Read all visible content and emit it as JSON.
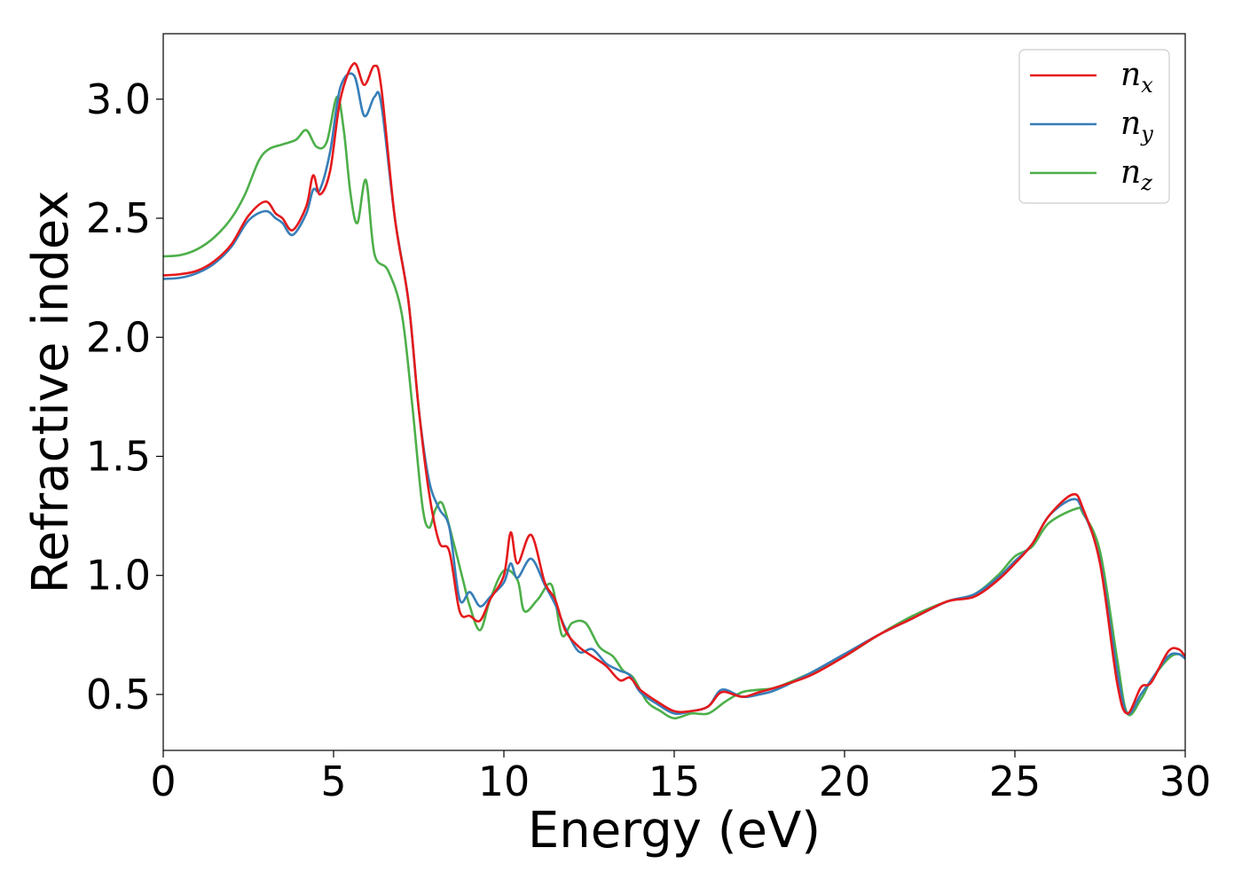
{
  "chart_data": {
    "type": "line",
    "title": "",
    "xlabel": "Energy (eV)",
    "ylabel": "Refractive index",
    "xlim": [
      0,
      30
    ],
    "ylim": [
      0.265,
      3.275
    ],
    "xticks": [
      "0",
      "5",
      "10",
      "15",
      "20",
      "25",
      "30"
    ],
    "yticks": [
      "0.5",
      "1.0",
      "1.5",
      "2.0",
      "2.5",
      "3.0"
    ],
    "grid": false,
    "legend_position": "top-right",
    "series": [
      {
        "name": "n_x",
        "label_base": "n",
        "label_sub": "x",
        "color": "#e41a1c",
        "points": [
          [
            0,
            2.26
          ],
          [
            0.5,
            2.265
          ],
          [
            1,
            2.28
          ],
          [
            1.5,
            2.32
          ],
          [
            2,
            2.39
          ],
          [
            2.5,
            2.51
          ],
          [
            3,
            2.57
          ],
          [
            3.3,
            2.52
          ],
          [
            3.5,
            2.5
          ],
          [
            3.8,
            2.45
          ],
          [
            4.2,
            2.55
          ],
          [
            4.4,
            2.68
          ],
          [
            4.6,
            2.6
          ],
          [
            4.9,
            2.7
          ],
          [
            5.2,
            3.0
          ],
          [
            5.6,
            3.15
          ],
          [
            5.9,
            3.06
          ],
          [
            6.2,
            3.14
          ],
          [
            6.4,
            3.05
          ],
          [
            6.8,
            2.5
          ],
          [
            7.2,
            2.15
          ],
          [
            7.5,
            1.7
          ],
          [
            7.8,
            1.35
          ],
          [
            8.1,
            1.14
          ],
          [
            8.4,
            1.1
          ],
          [
            8.7,
            0.85
          ],
          [
            9.0,
            0.83
          ],
          [
            9.3,
            0.81
          ],
          [
            9.6,
            0.9
          ],
          [
            10.0,
            1.0
          ],
          [
            10.2,
            1.18
          ],
          [
            10.4,
            1.05
          ],
          [
            10.8,
            1.17
          ],
          [
            11.2,
            0.97
          ],
          [
            11.5,
            0.9
          ],
          [
            11.8,
            0.77
          ],
          [
            12.2,
            0.7
          ],
          [
            12.6,
            0.66
          ],
          [
            13.0,
            0.62
          ],
          [
            13.4,
            0.56
          ],
          [
            13.7,
            0.57
          ],
          [
            14.0,
            0.52
          ],
          [
            14.5,
            0.47
          ],
          [
            15.0,
            0.43
          ],
          [
            15.5,
            0.43
          ],
          [
            16.0,
            0.45
          ],
          [
            16.4,
            0.51
          ],
          [
            17.0,
            0.49
          ],
          [
            17.5,
            0.51
          ],
          [
            18.0,
            0.53
          ],
          [
            19.0,
            0.58
          ],
          [
            20.0,
            0.66
          ],
          [
            21.0,
            0.75
          ],
          [
            22.0,
            0.82
          ],
          [
            23.0,
            0.89
          ],
          [
            23.8,
            0.91
          ],
          [
            24.5,
            0.98
          ],
          [
            25.0,
            1.05
          ],
          [
            25.5,
            1.13
          ],
          [
            26.0,
            1.25
          ],
          [
            26.7,
            1.34
          ],
          [
            27.0,
            1.28
          ],
          [
            27.5,
            1.05
          ],
          [
            28.0,
            0.55
          ],
          [
            28.3,
            0.42
          ],
          [
            28.7,
            0.53
          ],
          [
            29.0,
            0.55
          ],
          [
            29.5,
            0.68
          ],
          [
            29.8,
            0.69
          ],
          [
            30.0,
            0.66
          ]
        ]
      },
      {
        "name": "n_y",
        "label_base": "n",
        "label_sub": "y",
        "color": "#377eb8",
        "points": [
          [
            0,
            2.245
          ],
          [
            0.5,
            2.25
          ],
          [
            1,
            2.27
          ],
          [
            1.5,
            2.31
          ],
          [
            2,
            2.38
          ],
          [
            2.5,
            2.49
          ],
          [
            3,
            2.53
          ],
          [
            3.3,
            2.5
          ],
          [
            3.5,
            2.48
          ],
          [
            3.8,
            2.43
          ],
          [
            4.2,
            2.52
          ],
          [
            4.4,
            2.62
          ],
          [
            4.6,
            2.62
          ],
          [
            4.9,
            2.78
          ],
          [
            5.2,
            3.05
          ],
          [
            5.6,
            3.1
          ],
          [
            5.9,
            2.93
          ],
          [
            6.2,
            3.01
          ],
          [
            6.4,
            2.98
          ],
          [
            6.8,
            2.5
          ],
          [
            7.2,
            2.15
          ],
          [
            7.5,
            1.7
          ],
          [
            7.8,
            1.4
          ],
          [
            8.1,
            1.28
          ],
          [
            8.4,
            1.2
          ],
          [
            8.7,
            0.9
          ],
          [
            9.0,
            0.93
          ],
          [
            9.3,
            0.87
          ],
          [
            9.6,
            0.91
          ],
          [
            10.0,
            0.97
          ],
          [
            10.2,
            1.05
          ],
          [
            10.4,
            0.99
          ],
          [
            10.8,
            1.07
          ],
          [
            11.2,
            0.96
          ],
          [
            11.5,
            0.88
          ],
          [
            11.8,
            0.78
          ],
          [
            12.2,
            0.68
          ],
          [
            12.6,
            0.69
          ],
          [
            13.0,
            0.63
          ],
          [
            13.4,
            0.6
          ],
          [
            13.7,
            0.58
          ],
          [
            14.0,
            0.51
          ],
          [
            14.5,
            0.46
          ],
          [
            15.0,
            0.42
          ],
          [
            15.5,
            0.43
          ],
          [
            16.0,
            0.45
          ],
          [
            16.4,
            0.52
          ],
          [
            17.0,
            0.49
          ],
          [
            17.5,
            0.5
          ],
          [
            18.0,
            0.52
          ],
          [
            19.0,
            0.59
          ],
          [
            20.0,
            0.67
          ],
          [
            21.0,
            0.75
          ],
          [
            22.0,
            0.82
          ],
          [
            23.0,
            0.89
          ],
          [
            23.8,
            0.92
          ],
          [
            24.5,
            0.99
          ],
          [
            25.0,
            1.06
          ],
          [
            25.5,
            1.13
          ],
          [
            26.0,
            1.25
          ],
          [
            26.7,
            1.32
          ],
          [
            27.0,
            1.27
          ],
          [
            27.5,
            1.06
          ],
          [
            28.0,
            0.6
          ],
          [
            28.3,
            0.42
          ],
          [
            28.7,
            0.5
          ],
          [
            29.0,
            0.56
          ],
          [
            29.5,
            0.66
          ],
          [
            29.8,
            0.67
          ],
          [
            30.0,
            0.65
          ]
        ]
      },
      {
        "name": "n_z",
        "label_base": "n",
        "label_sub": "z",
        "color": "#4daf4a",
        "points": [
          [
            0,
            2.34
          ],
          [
            0.5,
            2.345
          ],
          [
            1,
            2.37
          ],
          [
            1.5,
            2.42
          ],
          [
            2,
            2.5
          ],
          [
            2.4,
            2.6
          ],
          [
            2.8,
            2.74
          ],
          [
            3.1,
            2.79
          ],
          [
            3.5,
            2.81
          ],
          [
            3.9,
            2.83
          ],
          [
            4.2,
            2.87
          ],
          [
            4.5,
            2.8
          ],
          [
            4.8,
            2.82
          ],
          [
            5.1,
            3.01
          ],
          [
            5.3,
            2.87
          ],
          [
            5.5,
            2.6
          ],
          [
            5.7,
            2.48
          ],
          [
            5.95,
            2.66
          ],
          [
            6.2,
            2.35
          ],
          [
            6.6,
            2.28
          ],
          [
            7.0,
            2.1
          ],
          [
            7.3,
            1.73
          ],
          [
            7.6,
            1.3
          ],
          [
            7.8,
            1.2
          ],
          [
            8.0,
            1.28
          ],
          [
            8.2,
            1.3
          ],
          [
            8.5,
            1.15
          ],
          [
            8.8,
            0.98
          ],
          [
            9.0,
            0.87
          ],
          [
            9.3,
            0.77
          ],
          [
            9.6,
            0.9
          ],
          [
            10.0,
            1.02
          ],
          [
            10.4,
            0.98
          ],
          [
            10.6,
            0.85
          ],
          [
            11.0,
            0.9
          ],
          [
            11.4,
            0.96
          ],
          [
            11.7,
            0.75
          ],
          [
            12.0,
            0.8
          ],
          [
            12.4,
            0.8
          ],
          [
            12.8,
            0.7
          ],
          [
            13.2,
            0.66
          ],
          [
            13.5,
            0.6
          ],
          [
            13.8,
            0.57
          ],
          [
            14.2,
            0.47
          ],
          [
            14.6,
            0.43
          ],
          [
            15.0,
            0.4
          ],
          [
            15.5,
            0.42
          ],
          [
            16.0,
            0.42
          ],
          [
            16.5,
            0.47
          ],
          [
            17.0,
            0.51
          ],
          [
            17.5,
            0.52
          ],
          [
            18.0,
            0.53
          ],
          [
            19.0,
            0.59
          ],
          [
            20.0,
            0.66
          ],
          [
            21.0,
            0.75
          ],
          [
            22.0,
            0.83
          ],
          [
            23.0,
            0.89
          ],
          [
            23.8,
            0.92
          ],
          [
            24.5,
            1.0
          ],
          [
            25.0,
            1.08
          ],
          [
            25.5,
            1.12
          ],
          [
            26.0,
            1.22
          ],
          [
            26.8,
            1.28
          ],
          [
            27.0,
            1.26
          ],
          [
            27.5,
            1.1
          ],
          [
            28.0,
            0.65
          ],
          [
            28.3,
            0.42
          ],
          [
            28.7,
            0.48
          ],
          [
            29.0,
            0.56
          ],
          [
            29.5,
            0.65
          ],
          [
            29.8,
            0.67
          ],
          [
            30.0,
            0.65
          ]
        ]
      }
    ]
  }
}
